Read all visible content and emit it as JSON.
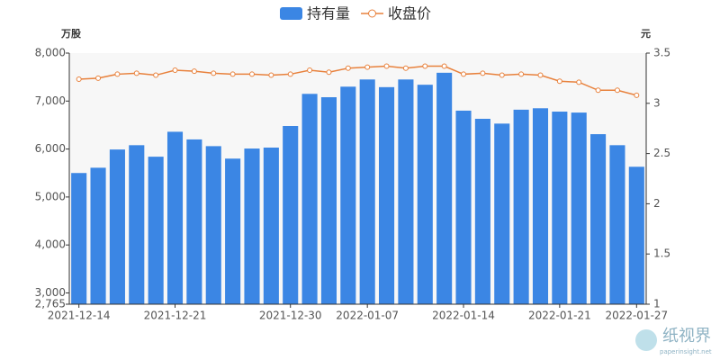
{
  "chart_data": {
    "type": "bar_line",
    "y_axis_label": "万股",
    "y2_axis_label": "元",
    "categories": [
      "2021-12-14",
      null,
      null,
      null,
      null,
      "2021-12-21",
      null,
      null,
      null,
      null,
      null,
      "2021-12-30",
      null,
      null,
      null,
      "2022-01-07",
      null,
      null,
      null,
      null,
      "2022-01-14",
      null,
      null,
      null,
      null,
      "2022-01-21",
      null,
      null,
      null,
      "2022-01-27"
    ],
    "series": [
      {
        "name": "持有量",
        "type": "bar",
        "color": "#3b86e4",
        "values": [
          5500,
          5610,
          5990,
          6080,
          5840,
          6360,
          6200,
          6060,
          5800,
          6010,
          6030,
          6480,
          7150,
          7080,
          7300,
          7450,
          7290,
          7450,
          7340,
          7590,
          6800,
          6630,
          6530,
          6820,
          6850,
          6780,
          6760,
          6310,
          6080,
          5630
        ]
      },
      {
        "name": "收盘价",
        "type": "line",
        "axis": "y2",
        "color": "#e8813c",
        "values": [
          3.24,
          3.25,
          3.29,
          3.3,
          3.28,
          3.33,
          3.32,
          3.3,
          3.29,
          3.29,
          3.28,
          3.29,
          3.33,
          3.31,
          3.35,
          3.36,
          3.37,
          3.35,
          3.37,
          3.37,
          3.29,
          3.3,
          3.28,
          3.29,
          3.28,
          3.22,
          3.21,
          3.13,
          3.13,
          3.08
        ]
      }
    ],
    "ylim": [
      2765,
      8000
    ],
    "yticks": [
      {
        "value": 2765,
        "label": "2,765"
      },
      {
        "value": 3000,
        "label": "3,000"
      },
      {
        "value": 4000,
        "label": "4,000"
      },
      {
        "value": 5000,
        "label": "5,000"
      },
      {
        "value": 6000,
        "label": "6,000"
      },
      {
        "value": 7000,
        "label": "7,000"
      },
      {
        "value": 8000,
        "label": "8,000"
      }
    ],
    "y2lim": [
      1,
      3.5
    ],
    "y2ticks": [
      1,
      1.5,
      2,
      2.5,
      3,
      3.5
    ],
    "legend": "top",
    "watermark": {
      "title": "纸视界",
      "url": "paperinsight.net"
    }
  }
}
